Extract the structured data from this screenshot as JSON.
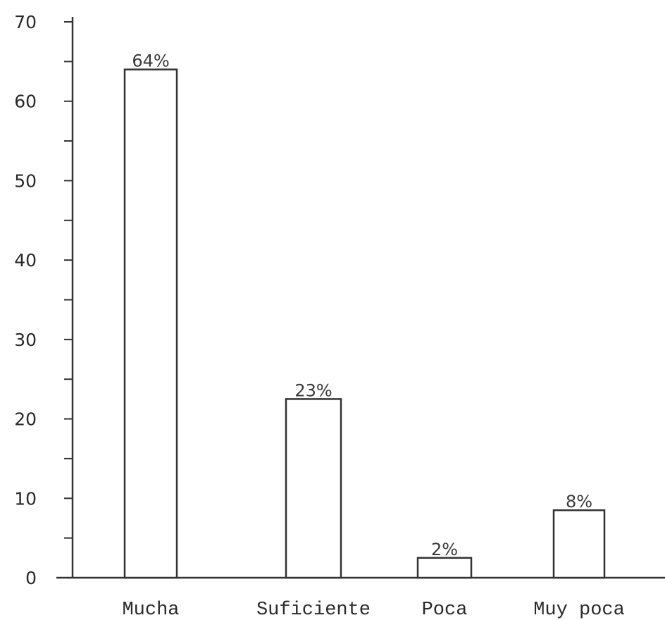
{
  "chart_data": {
    "type": "bar",
    "categories": [
      "Mucha",
      "Suficiente",
      "Poca",
      "Muy poca"
    ],
    "values": [
      64,
      22.5,
      2.5,
      8.5
    ],
    "data_labels": [
      "64%",
      "23%",
      "2%",
      "8%"
    ],
    "ylim": [
      0,
      70
    ],
    "y_major_ticks": [
      0,
      10,
      20,
      30,
      40,
      50,
      60,
      70
    ],
    "y_minor_step": 5,
    "title": "",
    "xlabel": "",
    "ylabel": "",
    "grid": false,
    "legend": "none",
    "colors": {
      "bar_fill": "#ffffff",
      "bar_stroke": "#333333",
      "axis": "#333333",
      "text": "#2a2a2a"
    }
  }
}
